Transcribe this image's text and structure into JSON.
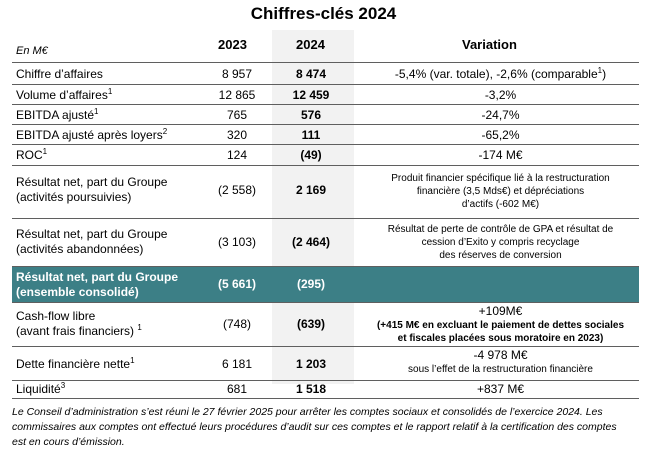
{
  "title": "Chiffres-clés 2024",
  "unit": "En M€",
  "headers": {
    "y2023": "2023",
    "y2024": "2024",
    "variation": "Variation"
  },
  "rows": [
    {
      "label": "Chiffre d’affaires",
      "sup": "",
      "v2023": "8 957",
      "v2024": "8 474",
      "variation": "-5,4% (var. totale), -2,6% (comparable",
      "variation_sup": "1",
      "variation_tail": ")"
    },
    {
      "label": "Volume d’affaires",
      "sup": "1",
      "v2023": "12 865",
      "v2024": "12 459",
      "variation": "-3,2%"
    },
    {
      "label": "EBITDA ajusté",
      "sup": "1",
      "v2023": "765",
      "v2024": "576",
      "variation": "-24,7%"
    },
    {
      "label": "EBITDA ajusté après loyers",
      "sup": "2",
      "v2023": "320",
      "v2024": "111",
      "variation": "-65,2%"
    },
    {
      "label": "ROC",
      "sup": "1",
      "v2023": "124",
      "v2024": "(49)",
      "variation": "-174 M€"
    },
    {
      "label1": "Résultat net, part du Groupe",
      "label2": "(activités poursuivies)",
      "v2023": "(2 558)",
      "v2024": "2 169",
      "var_lines": [
        "Produit financier spécifique lié à la restructuration",
        "financière (3,5 Mds€) et dépréciations",
        "d’actifs (-602 M€)"
      ]
    },
    {
      "label1": "Résultat net, part du Groupe",
      "label2": "(activités abandonnées)",
      "v2023": "(3 103)",
      "v2024": "(2 464)",
      "var_lines": [
        "Résultat de perte de contrôle de GPA et résultat de",
        "cession d’Exito y compris recyclage",
        "des réserves de conversion"
      ]
    },
    {
      "label1": "Résultat net, part du Groupe",
      "label2": "(ensemble consolidé)",
      "v2023": "(5 661)",
      "v2024": "(295)"
    },
    {
      "label1": "Cash-flow libre",
      "label2": "(avant frais financiers)",
      "sup": "1",
      "v2023": "(748)",
      "v2024": "(639)",
      "var_main": "+109M€",
      "var_lines": [
        "(+415 M€ en excluant le paiement de dettes sociales",
        "et fiscales placées sous moratoire en 2023)"
      ]
    },
    {
      "label": "Dette financière nette",
      "sup": "1",
      "v2023": "6 181",
      "v2024": "1 203",
      "var_main": "-4 978 M€",
      "var_lines": [
        "sous l’effet de la restructuration financière"
      ]
    },
    {
      "label": "Liquidité",
      "sup": "3",
      "v2023": "681",
      "v2024": "1 518",
      "variation": "+837 M€"
    }
  ],
  "footnote": "Le Conseil d’administration s’est réuni le 27 février 2025 pour arrêter les comptes sociaux et consolidés de l’exercice 2024. Les commissaires aux comptes ont effectué leurs procédures d’audit sur ces comptes et le rapport relatif à la certification des comptes est en cours d’émission."
}
